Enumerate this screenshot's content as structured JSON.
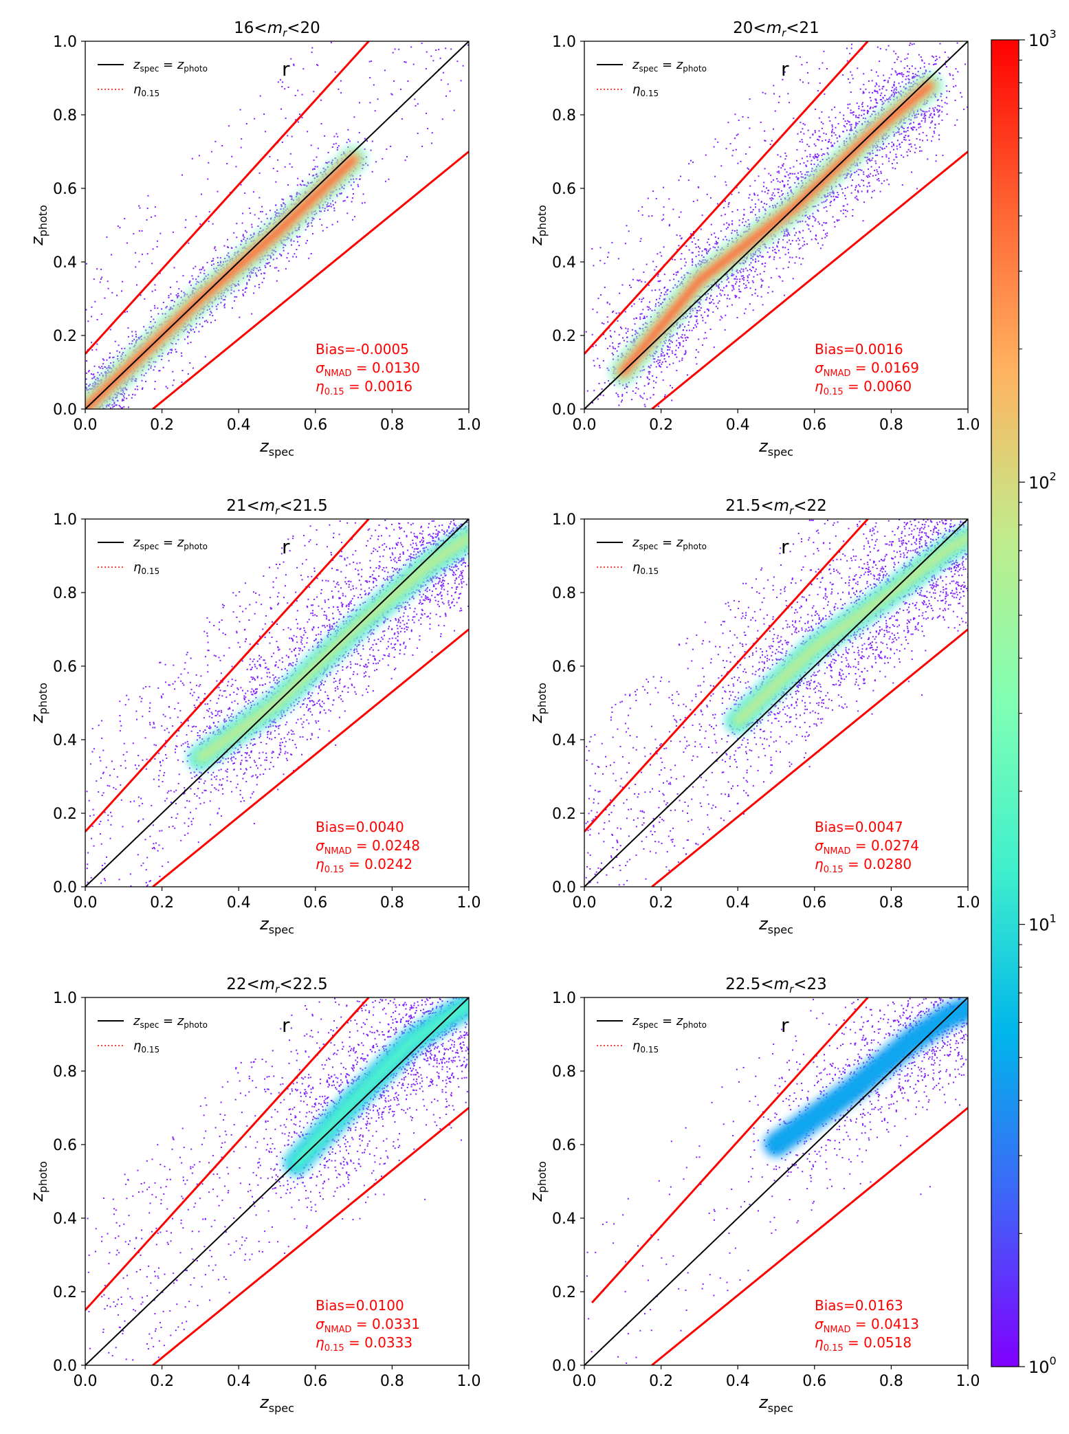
{
  "chart_data": [
    {
      "type": "heatmap",
      "title": "16<m_r<20",
      "title_parts": {
        "pre": "16<",
        "var": "m",
        "sub": "r",
        "post": "<20"
      },
      "xlabel": "z_spec",
      "ylabel": "z_photo",
      "xlim": [
        0,
        1
      ],
      "ylim": [
        0,
        1
      ],
      "xticks": [
        "0.0",
        "0.2",
        "0.4",
        "0.6",
        "0.8",
        "1.0"
      ],
      "yticks": [
        "0.0",
        "0.2",
        "0.4",
        "0.6",
        "0.8",
        "1.0"
      ],
      "band_label": "r",
      "legend": [
        "z_spec = z_photo",
        "η_0.15"
      ],
      "lines": {
        "identity": [
          [
            0,
            0
          ],
          [
            1,
            1
          ]
        ],
        "eta_upper": [
          [
            0,
            0.15
          ],
          [
            0.739,
            1
          ]
        ],
        "eta_lower": [
          [
            0.176,
            0
          ],
          [
            1,
            0.7
          ]
        ]
      },
      "density_ridge": [
        [
          0,
          0
        ],
        [
          0.1,
          0.1
        ],
        [
          0.3,
          0.3
        ],
        [
          0.5,
          0.48
        ],
        [
          0.7,
          0.68
        ]
      ],
      "peak_count": 1000,
      "stats": {
        "bias": "-0.0005",
        "sigma_nmad": "0.0130",
        "eta": "0.0016"
      }
    },
    {
      "type": "heatmap",
      "title": "20<m_r<21",
      "title_parts": {
        "pre": "20<",
        "var": "m",
        "sub": "r",
        "post": "<21"
      },
      "xlabel": "z_spec",
      "ylabel": "z_photo",
      "xlim": [
        0,
        1
      ],
      "ylim": [
        0,
        1
      ],
      "xticks": [
        "0.0",
        "0.2",
        "0.4",
        "0.6",
        "0.8",
        "1.0"
      ],
      "yticks": [
        "0.0",
        "0.2",
        "0.4",
        "0.6",
        "0.8",
        "1.0"
      ],
      "band_label": "r",
      "legend": [
        "z_spec = z_photo",
        "η_0.15"
      ],
      "lines": {
        "identity": [
          [
            0,
            0
          ],
          [
            1,
            1
          ]
        ],
        "eta_upper": [
          [
            0,
            0.15
          ],
          [
            0.739,
            1
          ]
        ],
        "eta_lower": [
          [
            0.176,
            0
          ],
          [
            1,
            0.7
          ]
        ]
      },
      "density_ridge": [
        [
          0.1,
          0.1
        ],
        [
          0.3,
          0.35
        ],
        [
          0.55,
          0.55
        ],
        [
          0.75,
          0.75
        ],
        [
          0.9,
          0.88
        ]
      ],
      "peak_count": 1000,
      "stats": {
        "bias": "0.0016",
        "sigma_nmad": "0.0169",
        "eta": "0.0060"
      }
    },
    {
      "type": "heatmap",
      "title": "21<m_r<21.5",
      "title_parts": {
        "pre": "21<",
        "var": "m",
        "sub": "r",
        "post": "<21.5"
      },
      "xlabel": "z_spec",
      "ylabel": "z_photo",
      "xlim": [
        0,
        1
      ],
      "ylim": [
        0,
        1
      ],
      "xticks": [
        "0.0",
        "0.2",
        "0.4",
        "0.6",
        "0.8",
        "1.0"
      ],
      "yticks": [
        "0.0",
        "0.2",
        "0.4",
        "0.6",
        "0.8",
        "1.0"
      ],
      "band_label": "r",
      "legend": [
        "z_spec = z_photo",
        "η_0.15"
      ],
      "lines": {
        "identity": [
          [
            0,
            0
          ],
          [
            1,
            1
          ]
        ],
        "eta_upper": [
          [
            0,
            0.15
          ],
          [
            0.739,
            1
          ]
        ],
        "eta_lower": [
          [
            0.176,
            0
          ],
          [
            1,
            0.7
          ]
        ]
      },
      "density_ridge": [
        [
          0.3,
          0.35
        ],
        [
          0.5,
          0.5
        ],
        [
          0.7,
          0.7
        ],
        [
          0.9,
          0.88
        ],
        [
          1.0,
          0.95
        ]
      ],
      "peak_count": 100,
      "stats": {
        "bias": "0.0040",
        "sigma_nmad": "0.0248",
        "eta": "0.0242"
      }
    },
    {
      "type": "heatmap",
      "title": "21.5<m_r<22",
      "title_parts": {
        "pre": "21.5<",
        "var": "m",
        "sub": "r",
        "post": "<22"
      },
      "xlabel": "z_spec",
      "ylabel": "z_photo",
      "xlim": [
        0,
        1
      ],
      "ylim": [
        0,
        1
      ],
      "xticks": [
        "0.0",
        "0.2",
        "0.4",
        "0.6",
        "0.8",
        "1.0"
      ],
      "yticks": [
        "0.0",
        "0.2",
        "0.4",
        "0.6",
        "0.8",
        "1.0"
      ],
      "band_label": "r",
      "legend": [
        "z_spec = z_photo",
        "η_0.15"
      ],
      "lines": {
        "identity": [
          [
            0,
            0
          ],
          [
            1,
            1
          ]
        ],
        "eta_upper": [
          [
            0,
            0.15
          ],
          [
            0.739,
            1
          ]
        ],
        "eta_lower": [
          [
            0.176,
            0
          ],
          [
            1,
            0.7
          ]
        ]
      },
      "density_ridge": [
        [
          0.4,
          0.45
        ],
        [
          0.6,
          0.65
        ],
        [
          0.8,
          0.8
        ],
        [
          0.95,
          0.92
        ],
        [
          1.0,
          0.95
        ]
      ],
      "peak_count": 100,
      "stats": {
        "bias": "0.0047",
        "sigma_nmad": "0.0274",
        "eta": "0.0280"
      }
    },
    {
      "type": "heatmap",
      "title": "22<m_r<22.5",
      "title_parts": {
        "pre": "22<",
        "var": "m",
        "sub": "r",
        "post": "<22.5"
      },
      "xlabel": "z_spec",
      "ylabel": "z_photo",
      "xlim": [
        0,
        1
      ],
      "ylim": [
        0,
        1
      ],
      "xticks": [
        "0.0",
        "0.2",
        "0.4",
        "0.6",
        "0.8",
        "1.0"
      ],
      "yticks": [
        "0.0",
        "0.2",
        "0.4",
        "0.6",
        "0.8",
        "1.0"
      ],
      "band_label": "r",
      "legend": [
        "z_spec = z_photo",
        "η_0.15"
      ],
      "lines": {
        "identity": [
          [
            0,
            0
          ],
          [
            1,
            1
          ]
        ],
        "eta_upper": [
          [
            0,
            0.15
          ],
          [
            0.739,
            1
          ]
        ],
        "eta_lower": [
          [
            0.176,
            0
          ],
          [
            1,
            0.7
          ]
        ]
      },
      "density_ridge": [
        [
          0.55,
          0.55
        ],
        [
          0.7,
          0.72
        ],
        [
          0.85,
          0.88
        ],
        [
          0.95,
          0.95
        ],
        [
          1.0,
          0.98
        ]
      ],
      "peak_count": 20,
      "stats": {
        "bias": "0.0100",
        "sigma_nmad": "0.0331",
        "eta": "0.0333"
      }
    },
    {
      "type": "heatmap",
      "title": "22.5<m_r<23",
      "title_parts": {
        "pre": "22.5<",
        "var": "m",
        "sub": "r",
        "post": "<23"
      },
      "xlabel": "z_spec",
      "ylabel": "z_photo",
      "xlim": [
        0,
        1
      ],
      "ylim": [
        0,
        1
      ],
      "xticks": [
        "0.0",
        "0.2",
        "0.4",
        "0.6",
        "0.8",
        "1.0"
      ],
      "yticks": [
        "0.0",
        "0.2",
        "0.4",
        "0.6",
        "0.8",
        "1.0"
      ],
      "band_label": "r",
      "legend": [
        "z_spec = z_photo",
        "η_0.15"
      ],
      "lines": {
        "identity": [
          [
            0,
            0
          ],
          [
            1,
            1
          ]
        ],
        "eta_upper": [
          [
            0.02,
            0.17
          ],
          [
            0.739,
            1
          ]
        ],
        "eta_lower": [
          [
            0.176,
            0
          ],
          [
            1,
            0.7
          ]
        ]
      },
      "density_ridge": [
        [
          0.5,
          0.6
        ],
        [
          0.7,
          0.75
        ],
        [
          0.85,
          0.88
        ],
        [
          0.95,
          0.95
        ],
        [
          1.0,
          0.97
        ]
      ],
      "peak_count": 5,
      "stats": {
        "bias": "0.0163",
        "sigma_nmad": "0.0413",
        "eta": "0.0518"
      }
    }
  ],
  "colorbar": {
    "scale": "log",
    "range": [
      1,
      1000
    ],
    "ticks": [
      {
        "base": "10",
        "exp": "0",
        "value": 1
      },
      {
        "base": "10",
        "exp": "1",
        "value": 10
      },
      {
        "base": "10",
        "exp": "2",
        "value": 100
      },
      {
        "base": "10",
        "exp": "3",
        "value": 1000
      }
    ],
    "colormap": "rainbow"
  },
  "colors": {
    "identity_line": "#000000",
    "eta_line": "#ff0000",
    "stats_text": "#ff0000"
  }
}
